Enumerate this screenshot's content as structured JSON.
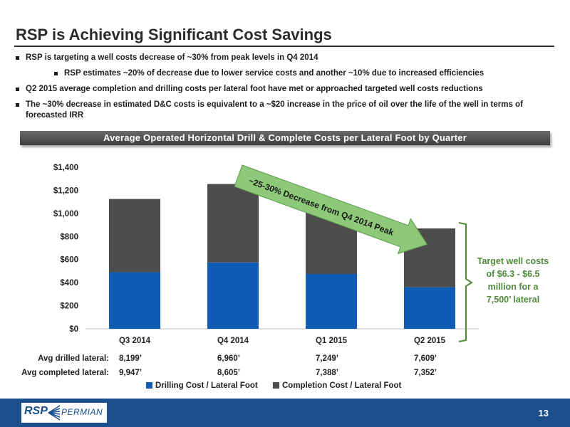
{
  "slide": {
    "title": "RSP is Achieving Significant Cost Savings",
    "bullets": [
      "RSP is targeting a well costs decrease of ~30% from peak levels in Q4 2014",
      "RSP estimates ~20% of decrease due to lower service costs and another ~10% due to increased efficiencies",
      "Q2 2015 average completion and drilling costs per lateral foot have met or approached targeted well costs reductions",
      "The ~30% decrease in estimated D&C costs is equivalent to a ~$20 increase in the price of oil over the life of the well in terms of forecasted IRR"
    ],
    "banner": "Average Operated Horizontal Drill & Complete Costs per Lateral Foot by Quarter",
    "page_number": "13",
    "logo": {
      "left": "RSP",
      "right": "PERMIAN"
    }
  },
  "chart_data": {
    "type": "bar",
    "stacked": true,
    "categories": [
      "Q3 2014",
      "Q4 2014",
      "Q1 2015",
      "Q2 2015"
    ],
    "series": [
      {
        "name": "Drilling Cost / Lateral Foot",
        "color": "#0f5bb5",
        "values": [
          490,
          575,
          475,
          360
        ]
      },
      {
        "name": "Completion Cost / Lateral Foot",
        "color": "#4d4d4d",
        "values": [
          635,
          680,
          550,
          510
        ]
      }
    ],
    "ylim": [
      0,
      1400
    ],
    "yticks": [
      0,
      200,
      400,
      600,
      800,
      1000,
      1200,
      1400
    ],
    "ytick_labels": [
      "$0",
      "$200",
      "$400",
      "$600",
      "$800",
      "$1,000",
      "$1,200",
      "$1,400"
    ],
    "grid": false,
    "legend": "bottom",
    "annotation_arrow": "~25-30% Decrease from Q4 2014 Peak",
    "annotation_bracket": "Target well costs of $6.3 - $6.5 million for a 7,500’ lateral",
    "arrow_color": "#8ec97a",
    "bracket_color": "#4f8a3a",
    "table_rows": [
      {
        "label": "Avg drilled lateral:",
        "values": [
          "8,199’",
          "6,960’",
          "7,249’",
          "7,609’"
        ]
      },
      {
        "label": "Avg completed lateral:",
        "values": [
          "9,947’",
          "8,605’",
          "7,388’",
          "7,352’"
        ]
      }
    ]
  }
}
